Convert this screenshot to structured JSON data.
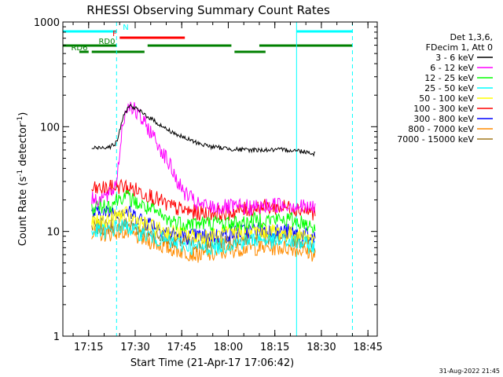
{
  "chart_data": {
    "type": "line",
    "title": "RHESSI Observing Summary Count Rates",
    "xlabel": "Start Time (21-Apr-17 17:06:42)",
    "ylabel": "Count Rate (s",
    "ylabel_sup": "-1",
    "ylabel_tail": " detector",
    "ylabel_sup2": "-1",
    "ylabel_close": ")",
    "y_scale": "log",
    "ylim": [
      1,
      1000
    ],
    "y_ticks": [
      "1",
      "10",
      "100",
      "1000"
    ],
    "xlim": [
      "17:06:42",
      "18:48:00"
    ],
    "x_ticks": [
      "17:15",
      "17:30",
      "17:45",
      "18:00",
      "18:15",
      "18:30",
      "18:45"
    ],
    "grid": false,
    "legend_header": [
      "Det 1,3,6,",
      "FDecim 1, Att 0"
    ],
    "legend_placement": "right",
    "series": [
      {
        "name": "3 - 6 keV",
        "color": "#000000",
        "x": [
          "17:16",
          "17:22",
          "17:24",
          "17:26",
          "17:28",
          "17:30",
          "17:35",
          "17:40",
          "17:45",
          "17:50",
          "17:55",
          "18:00",
          "18:05",
          "18:10",
          "18:15",
          "18:20",
          "18:25",
          "18:28"
        ],
        "y": [
          62,
          65,
          70,
          120,
          160,
          150,
          120,
          95,
          80,
          70,
          64,
          62,
          60,
          60,
          60,
          60,
          58,
          55
        ]
      },
      {
        "name": "6 - 12 keV",
        "color": "#ff00ff",
        "x": [
          "17:16",
          "17:22",
          "17:24",
          "17:26",
          "17:28",
          "17:30",
          "17:35",
          "17:40",
          "17:45",
          "17:50",
          "17:55",
          "18:00",
          "18:05",
          "18:10",
          "18:15",
          "18:20",
          "18:25",
          "18:28"
        ],
        "y": [
          20,
          22,
          30,
          110,
          170,
          140,
          90,
          50,
          25,
          18,
          17,
          17,
          17,
          17,
          18,
          18,
          17,
          17
        ]
      },
      {
        "name": "12 - 25 keV",
        "color": "#00ff00",
        "x": [
          "17:16",
          "17:22",
          "17:24",
          "17:26",
          "17:28",
          "17:30",
          "17:35",
          "17:40",
          "17:45",
          "17:50",
          "17:55",
          "18:00",
          "18:05",
          "18:10",
          "18:15",
          "18:20",
          "18:25",
          "18:28"
        ],
        "y": [
          17,
          18,
          20,
          22,
          21,
          19,
          16,
          13,
          12,
          12,
          12,
          12,
          12,
          13,
          13,
          13,
          12,
          11
        ]
      },
      {
        "name": "25 - 50 keV",
        "color": "#00ffff",
        "x": [
          "17:16",
          "17:22",
          "17:24",
          "17:26",
          "17:28",
          "17:30",
          "17:35",
          "17:40",
          "17:45",
          "17:50",
          "17:55",
          "18:00",
          "18:05",
          "18:10",
          "18:15",
          "18:20",
          "18:25",
          "18:28"
        ],
        "y": [
          10,
          10,
          11,
          11,
          11,
          10,
          9,
          8,
          7.5,
          7,
          7,
          7.5,
          8,
          8.5,
          8,
          8,
          7.5,
          7
        ]
      },
      {
        "name": "50 - 100 keV",
        "color": "#ffff00",
        "x": [
          "17:16",
          "17:22",
          "17:24",
          "17:26",
          "17:28",
          "17:30",
          "17:35",
          "17:40",
          "17:45",
          "17:50",
          "17:55",
          "18:00",
          "18:05",
          "18:10",
          "18:15",
          "18:20",
          "18:25",
          "18:28"
        ],
        "y": [
          12,
          13,
          14,
          15,
          14,
          13,
          11,
          10,
          9.5,
          9,
          9,
          9.5,
          10,
          10,
          10,
          9.5,
          9,
          8.5
        ]
      },
      {
        "name": "100 - 300 keV",
        "color": "#ff0000",
        "x": [
          "17:16",
          "17:22",
          "17:24",
          "17:26",
          "17:28",
          "17:30",
          "17:35",
          "17:40",
          "17:45",
          "17:50",
          "17:55",
          "18:00",
          "18:05",
          "18:10",
          "18:15",
          "18:20",
          "18:25",
          "18:28"
        ],
        "y": [
          25,
          26,
          27,
          27,
          26,
          25,
          22,
          18,
          16,
          15,
          15,
          15,
          16,
          17,
          17,
          17,
          16,
          15
        ]
      },
      {
        "name": "300 - 800 keV",
        "color": "#0000ff",
        "x": [
          "17:16",
          "17:22",
          "17:24",
          "17:26",
          "17:28",
          "17:30",
          "17:35",
          "17:40",
          "17:45",
          "17:50",
          "17:55",
          "18:00",
          "18:05",
          "18:10",
          "18:15",
          "18:20",
          "18:25",
          "18:28"
        ],
        "y": [
          15,
          15,
          16,
          16,
          15,
          14,
          12,
          10,
          9,
          9,
          9,
          9.5,
          10,
          10.5,
          10,
          10,
          9,
          8.5
        ]
      },
      {
        "name": "800 - 7000 keV",
        "color": "#ff8c00",
        "x": [
          "17:16",
          "17:22",
          "17:24",
          "17:26",
          "17:28",
          "17:30",
          "17:35",
          "17:40",
          "17:45",
          "17:50",
          "17:55",
          "18:00",
          "18:05",
          "18:10",
          "18:15",
          "18:20",
          "18:25",
          "18:28"
        ],
        "y": [
          9.5,
          9.5,
          10,
          10,
          9.5,
          9,
          8,
          7,
          6.5,
          6,
          6,
          6.5,
          7,
          7,
          7,
          7,
          6.5,
          6
        ]
      },
      {
        "name": "7000 - 15000 keV",
        "color": "#a0781e",
        "x": [
          "17:16",
          "17:22",
          "17:24",
          "17:26",
          "17:28",
          "17:30",
          "17:35",
          "17:40",
          "17:45",
          "17:50",
          "17:55",
          "18:00",
          "18:05",
          "18:10",
          "18:15",
          "18:20",
          "18:25",
          "18:28"
        ],
        "y": [
          11,
          11,
          12,
          12,
          11.5,
          11,
          9.5,
          8.5,
          8,
          7.5,
          7.5,
          8,
          8.5,
          9,
          8.5,
          8.5,
          8,
          7.5
        ]
      }
    ],
    "annotation_bars": [
      {
        "label": "N",
        "color": "#00ffff",
        "label_color": "#00ffff",
        "segments": [
          [
            "17:06:42",
            "17:24"
          ],
          [
            "18:22",
            "18:40"
          ]
        ],
        "row": 1
      },
      {
        "label": "F",
        "color": "#ff0000",
        "label_color": "#ff0000",
        "segments": [
          [
            "17:25",
            "17:46"
          ]
        ],
        "row": 2
      },
      {
        "label": "RD0",
        "color": "#008000",
        "label_color": "#008000",
        "segments": [
          [
            "17:06:42",
            "17:24"
          ],
          [
            "17:34",
            "18:01"
          ],
          [
            "18:10",
            "18:40"
          ]
        ],
        "row": 3
      },
      {
        "label": "RD6",
        "color": "#008000",
        "label_color": "#008000",
        "segments": [
          [
            "17:12",
            "17:15"
          ],
          [
            "17:16",
            "17:33"
          ],
          [
            "18:02",
            "18:12"
          ]
        ],
        "row": 4
      }
    ],
    "vertical_markers": [
      {
        "time": "17:06:42",
        "style": "solid",
        "color": "#00ffff"
      },
      {
        "time": "17:24",
        "style": "dashed",
        "color": "#00ffff"
      },
      {
        "time": "18:22",
        "style": "solid",
        "color": "#00ffff"
      },
      {
        "time": "18:40",
        "style": "dashed",
        "color": "#00ffff"
      }
    ]
  },
  "footer_timestamp": "31-Aug-2022 21:45"
}
